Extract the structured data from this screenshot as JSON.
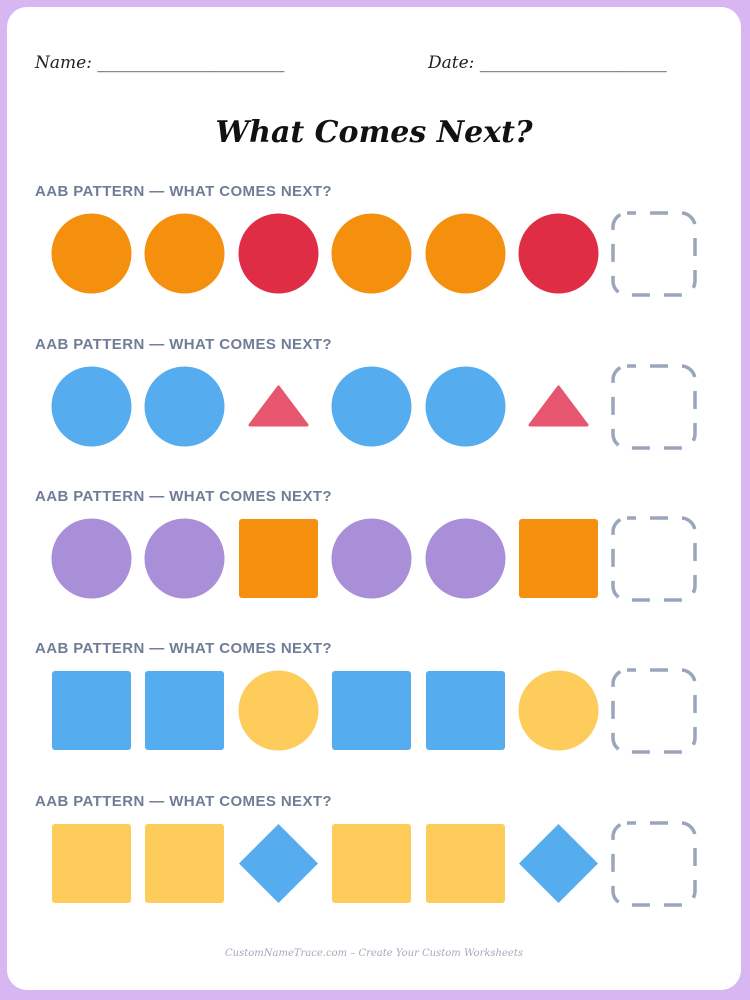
{
  "header": {
    "name_label": "Name: ______________________",
    "date_label": "Date: ______________________"
  },
  "title": "What Comes Next?",
  "colors": {
    "orange": "#f5900f",
    "red": "#de2d45",
    "blue": "#55acee",
    "pink": "#e6566f",
    "purple": "#a98fd8",
    "yellow": "#fdcc5b",
    "dashed_box": "#9aa6ba"
  },
  "sections": [
    {
      "label": "AAB PATTERN — WHAT COMES NEXT?",
      "items": [
        {
          "shape": "circle",
          "color": "#f5900f"
        },
        {
          "shape": "circle",
          "color": "#f5900f"
        },
        {
          "shape": "circle",
          "color": "#de2d45"
        },
        {
          "shape": "circle",
          "color": "#f5900f"
        },
        {
          "shape": "circle",
          "color": "#f5900f"
        },
        {
          "shape": "circle",
          "color": "#de2d45"
        }
      ]
    },
    {
      "label": "AAB PATTERN — WHAT COMES NEXT?",
      "items": [
        {
          "shape": "circle",
          "color": "#55acee"
        },
        {
          "shape": "circle",
          "color": "#55acee"
        },
        {
          "shape": "triangle",
          "color": "#e6566f"
        },
        {
          "shape": "circle",
          "color": "#55acee"
        },
        {
          "shape": "circle",
          "color": "#55acee"
        },
        {
          "shape": "triangle",
          "color": "#e6566f"
        }
      ]
    },
    {
      "label": "AAB PATTERN — WHAT COMES NEXT?",
      "items": [
        {
          "shape": "circle",
          "color": "#a98fd8"
        },
        {
          "shape": "circle",
          "color": "#a98fd8"
        },
        {
          "shape": "square",
          "color": "#f5900f"
        },
        {
          "shape": "circle",
          "color": "#a98fd8"
        },
        {
          "shape": "circle",
          "color": "#a98fd8"
        },
        {
          "shape": "square",
          "color": "#f5900f"
        }
      ]
    },
    {
      "label": "AAB PATTERN — WHAT COMES NEXT?",
      "items": [
        {
          "shape": "square",
          "color": "#55acee"
        },
        {
          "shape": "square",
          "color": "#55acee"
        },
        {
          "shape": "circle",
          "color": "#fdcc5b"
        },
        {
          "shape": "square",
          "color": "#55acee"
        },
        {
          "shape": "square",
          "color": "#55acee"
        },
        {
          "shape": "circle",
          "color": "#fdcc5b"
        }
      ]
    },
    {
      "label": "AAB PATTERN — WHAT COMES NEXT?",
      "items": [
        {
          "shape": "square",
          "color": "#fdcc5b"
        },
        {
          "shape": "square",
          "color": "#fdcc5b"
        },
        {
          "shape": "diamond",
          "color": "#55acee"
        },
        {
          "shape": "square",
          "color": "#fdcc5b"
        },
        {
          "shape": "square",
          "color": "#fdcc5b"
        },
        {
          "shape": "diamond",
          "color": "#55acee"
        }
      ]
    }
  ],
  "footer": "CustomNameTrace.com – Create Your Custom Worksheets"
}
